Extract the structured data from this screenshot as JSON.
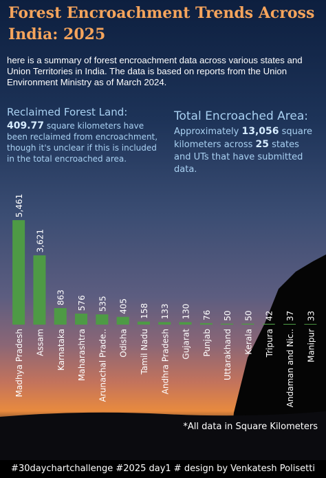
{
  "header": {
    "title": "Forest Encroachment Trends Across India: 2025",
    "intro": "here is a summary of forest encroachment data across various states and Union Territories in India. The data is based on reports from the Union Environment Ministry as of March 2024."
  },
  "reclaimed": {
    "heading": "Reclaimed Forest Land:",
    "value": "409.77",
    "text": " square kilometers have been reclaimed from encroachment, though it's unclear if this is included in the total encroached area."
  },
  "total": {
    "heading": "Total Encroached Area:",
    "prefix": "Approximately ",
    "value": "13,056",
    "middle": " square kilometers across ",
    "count": "25",
    "suffix": " states and UTs that have submitted data."
  },
  "chart_data": {
    "type": "bar",
    "categories": [
      "Madhya Pradesh",
      "Assam",
      "Karnataka",
      "Maharashtra",
      "Arunachal Prade..",
      "Odisha",
      "Tamil Nadu",
      "Andhra Pradesh",
      "Gujarat",
      "Punjab",
      "Uttarakhand",
      "Kerala",
      "Tripura",
      "Andaman and Nic..",
      "Manipur"
    ],
    "values": [
      5461,
      3621,
      863,
      576,
      535,
      405,
      158,
      133,
      130,
      76,
      50,
      50,
      42,
      37,
      33
    ],
    "value_labels": [
      "5,461",
      "3,621",
      "863",
      "576",
      "535",
      "405",
      "158",
      "133",
      "130",
      "76",
      "50",
      "50",
      "42",
      "37",
      "33"
    ],
    "color": "#4e9a45",
    "ylim": [
      0,
      5500
    ]
  },
  "note": "*All data in Square Kilometers",
  "footer": "#30daychartchallenge #2025 day1 # design by Venkatesh Polisetti"
}
